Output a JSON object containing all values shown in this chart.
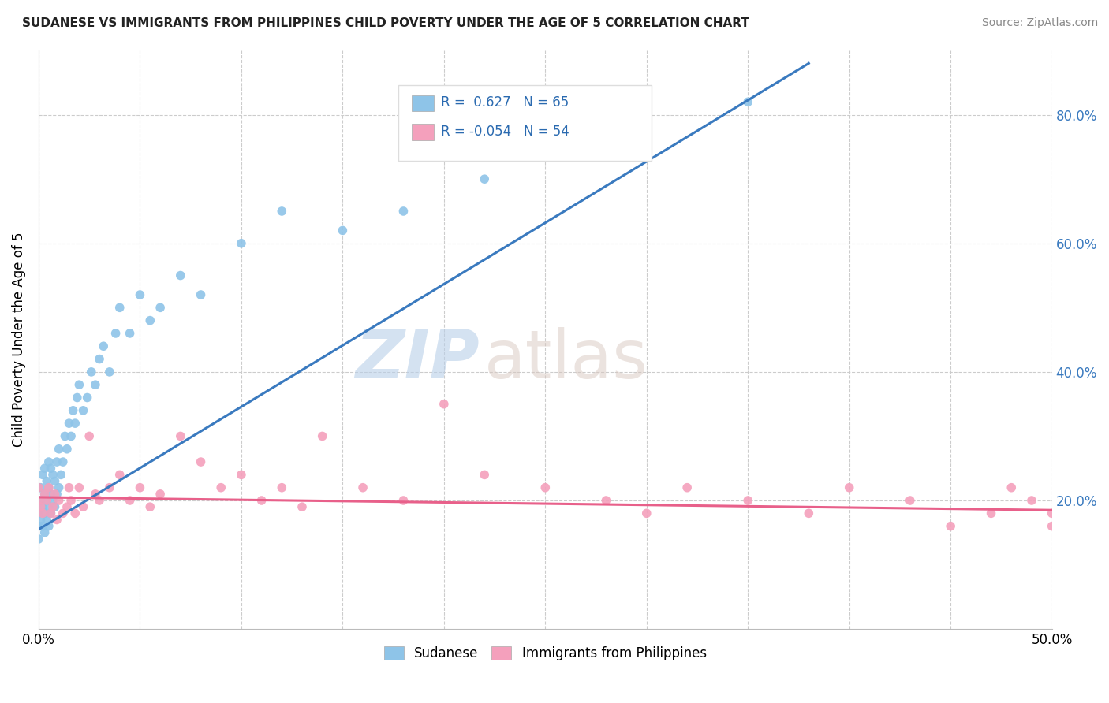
{
  "title": "SUDANESE VS IMMIGRANTS FROM PHILIPPINES CHILD POVERTY UNDER THE AGE OF 5 CORRELATION CHART",
  "source": "Source: ZipAtlas.com",
  "ylabel": "Child Poverty Under the Age of 5",
  "legend_blue_r": "0.627",
  "legend_blue_n": "65",
  "legend_pink_r": "-0.054",
  "legend_pink_n": "54",
  "blue_color": "#8ec4e8",
  "pink_color": "#f4a0bc",
  "blue_line_color": "#3a7abf",
  "pink_line_color": "#e8608a",
  "sudanese_x": [
    0.0,
    0.0,
    0.0,
    0.0,
    0.0,
    0.001,
    0.001,
    0.001,
    0.002,
    0.002,
    0.002,
    0.003,
    0.003,
    0.003,
    0.003,
    0.004,
    0.004,
    0.004,
    0.005,
    0.005,
    0.005,
    0.005,
    0.006,
    0.006,
    0.006,
    0.007,
    0.007,
    0.008,
    0.008,
    0.009,
    0.009,
    0.01,
    0.01,
    0.011,
    0.012,
    0.013,
    0.014,
    0.015,
    0.016,
    0.017,
    0.018,
    0.019,
    0.02,
    0.022,
    0.024,
    0.026,
    0.028,
    0.03,
    0.032,
    0.035,
    0.038,
    0.04,
    0.045,
    0.05,
    0.055,
    0.06,
    0.07,
    0.08,
    0.1,
    0.12,
    0.15,
    0.18,
    0.22,
    0.28,
    0.35
  ],
  "sudanese_y": [
    0.16,
    0.18,
    0.2,
    0.22,
    0.14,
    0.17,
    0.2,
    0.22,
    0.16,
    0.19,
    0.24,
    0.15,
    0.18,
    0.21,
    0.25,
    0.17,
    0.2,
    0.23,
    0.16,
    0.19,
    0.22,
    0.26,
    0.18,
    0.21,
    0.25,
    0.2,
    0.24,
    0.19,
    0.23,
    0.21,
    0.26,
    0.22,
    0.28,
    0.24,
    0.26,
    0.3,
    0.28,
    0.32,
    0.3,
    0.34,
    0.32,
    0.36,
    0.38,
    0.34,
    0.36,
    0.4,
    0.38,
    0.42,
    0.44,
    0.4,
    0.46,
    0.5,
    0.46,
    0.52,
    0.48,
    0.5,
    0.55,
    0.52,
    0.6,
    0.65,
    0.62,
    0.65,
    0.7,
    0.75,
    0.82
  ],
  "philippines_x": [
    0.0,
    0.0,
    0.001,
    0.002,
    0.003,
    0.004,
    0.005,
    0.006,
    0.007,
    0.008,
    0.009,
    0.01,
    0.012,
    0.014,
    0.015,
    0.016,
    0.018,
    0.02,
    0.022,
    0.025,
    0.028,
    0.03,
    0.035,
    0.04,
    0.045,
    0.05,
    0.055,
    0.06,
    0.07,
    0.08,
    0.09,
    0.1,
    0.11,
    0.12,
    0.13,
    0.14,
    0.16,
    0.18,
    0.2,
    0.22,
    0.25,
    0.28,
    0.3,
    0.32,
    0.35,
    0.38,
    0.4,
    0.43,
    0.45,
    0.47,
    0.48,
    0.49,
    0.5,
    0.5
  ],
  "philippines_y": [
    0.2,
    0.22,
    0.19,
    0.18,
    0.21,
    0.2,
    0.22,
    0.18,
    0.19,
    0.21,
    0.17,
    0.2,
    0.18,
    0.19,
    0.22,
    0.2,
    0.18,
    0.22,
    0.19,
    0.3,
    0.21,
    0.2,
    0.22,
    0.24,
    0.2,
    0.22,
    0.19,
    0.21,
    0.3,
    0.26,
    0.22,
    0.24,
    0.2,
    0.22,
    0.19,
    0.3,
    0.22,
    0.2,
    0.35,
    0.24,
    0.22,
    0.2,
    0.18,
    0.22,
    0.2,
    0.18,
    0.22,
    0.2,
    0.16,
    0.18,
    0.22,
    0.2,
    0.18,
    0.16
  ],
  "xlim": [
    0.0,
    0.5
  ],
  "ylim": [
    0.0,
    0.9
  ],
  "blue_line_x0": 0.0,
  "blue_line_y0": 0.155,
  "blue_line_x1": 0.38,
  "blue_line_y1": 0.88,
  "pink_line_x0": 0.0,
  "pink_line_y0": 0.205,
  "pink_line_x1": 0.5,
  "pink_line_y1": 0.185,
  "figsize": [
    14.06,
    8.92
  ],
  "dpi": 100
}
